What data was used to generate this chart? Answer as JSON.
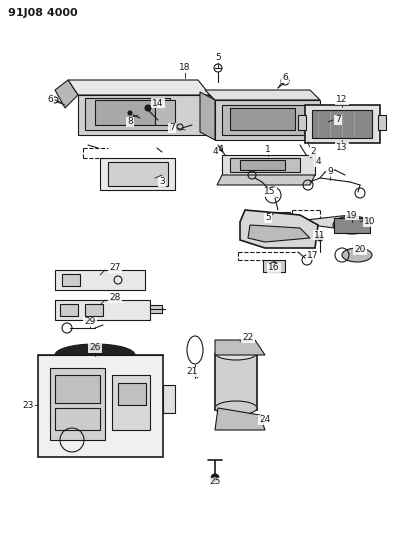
{
  "title": "91J08 4000",
  "bg_color": "#ffffff",
  "line_color": "#1a1a1a",
  "fig_width": 4.12,
  "fig_height": 5.33,
  "dpi": 100
}
